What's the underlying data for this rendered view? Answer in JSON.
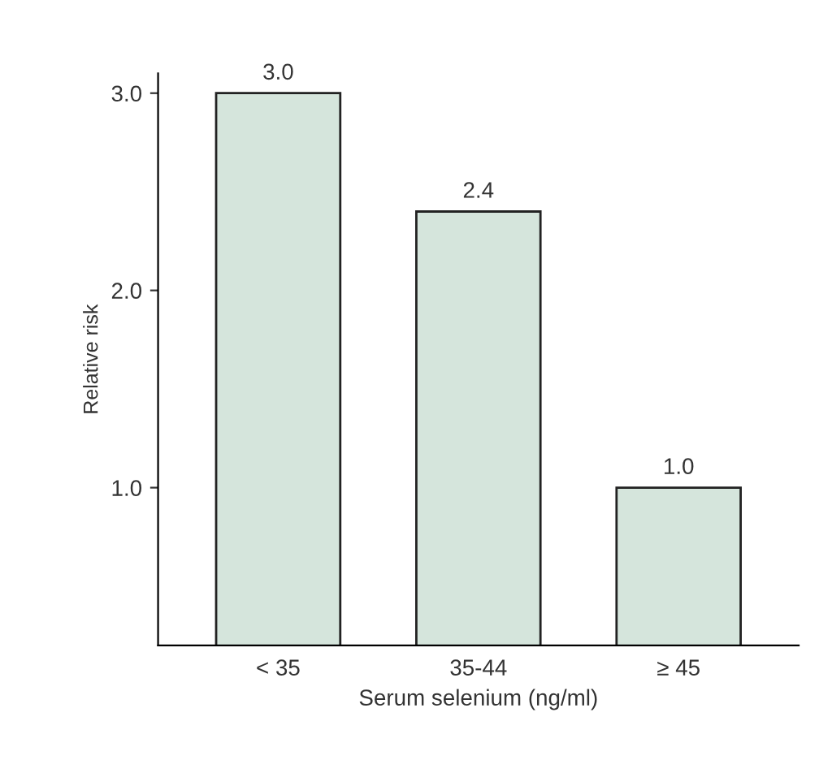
{
  "chart_data": {
    "type": "bar",
    "xlabel": "Serum selenium (ng/ml)",
    "ylabel": "Relative risk",
    "categories": [
      "< 35",
      "35-44",
      "≥ 45"
    ],
    "values": [
      3.0,
      2.4,
      1.0
    ],
    "value_labels": [
      "3.0",
      "2.4",
      "1.0"
    ],
    "color": "#d5e5dc",
    "ylim": [
      0.2,
      3.1
    ],
    "yticks": [
      {
        "value": 1.0,
        "label": "1.0"
      },
      {
        "value": 2.0,
        "label": "2.0"
      },
      {
        "value": 3.0,
        "label": "3.0"
      }
    ],
    "grid": false,
    "legend": false
  }
}
